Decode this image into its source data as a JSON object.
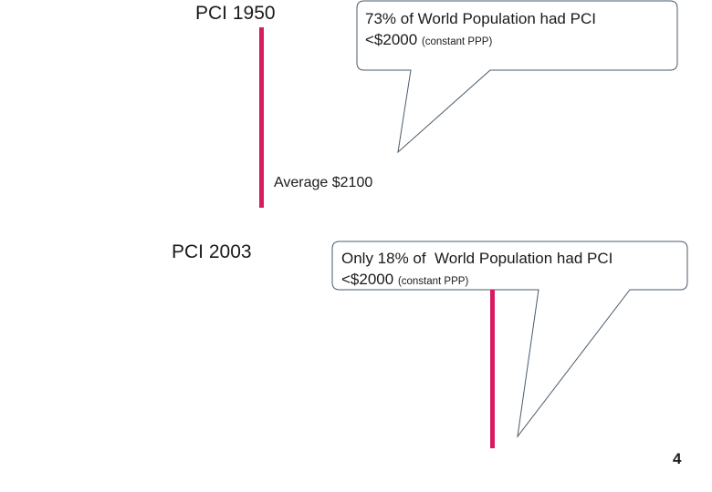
{
  "slide": {
    "title_1950": "PCI 1950",
    "title_2003": "PCI 2003",
    "average_label": "Average $2100",
    "callout_1950": {
      "line1": "73% of World Population had PCI",
      "line2_main": "<$2000",
      "line2_small": "(constant PPP)"
    },
    "callout_2003": {
      "line1": "Only 18% of  World Population had PCI",
      "line2_main": "<$2000",
      "line2_small": "(constant PPP)"
    },
    "page_number": "4"
  },
  "colors": {
    "marker": "#d81b60",
    "callout_border": "#4a5a6a",
    "text": "#1a1a1a"
  }
}
